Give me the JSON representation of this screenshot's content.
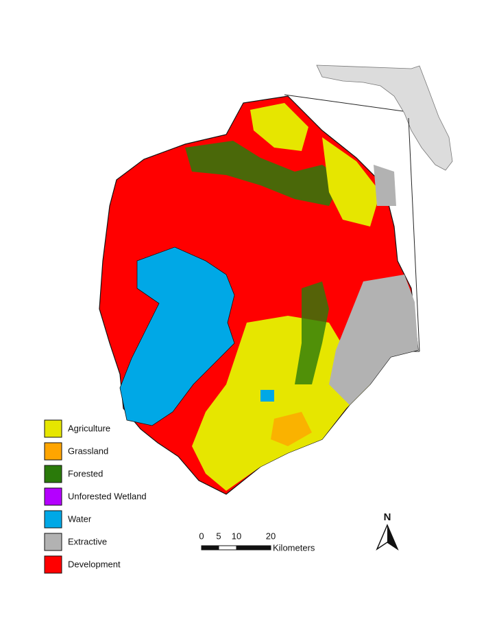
{
  "legend": {
    "items": [
      {
        "label": "Agriculture",
        "color": "#e6e600"
      },
      {
        "label": "Grassland",
        "color": "#ffa500"
      },
      {
        "label": "Forested",
        "color": "#2a7a0a"
      },
      {
        "label": "Unforested Wetland",
        "color": "#b400ff"
      },
      {
        "label": "Water",
        "color": "#00a8e6"
      },
      {
        "label": "Extractive",
        "color": "#b2b2b2"
      },
      {
        "label": "Development",
        "color": "#ff0000"
      }
    ]
  },
  "scale_bar": {
    "ticks": [
      "0",
      "5",
      "10",
      "20"
    ],
    "unit": "Kilometers"
  },
  "north_arrow": {
    "label": "N"
  }
}
